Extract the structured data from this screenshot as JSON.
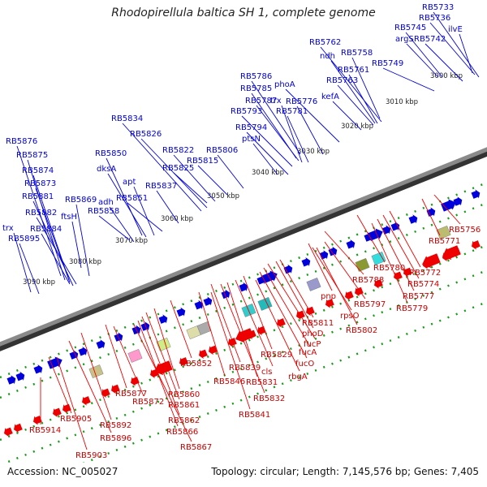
{
  "title": "Rhodopirellula baltica SH 1, complete genome",
  "footer": {
    "accession": "Accession: NC_005027",
    "summary": "Topology: circular; Length: 7,145,576 bp; Genes: 7,405"
  },
  "colors": {
    "forward_strand": "#0000dd",
    "reverse_strand": "#ee0000",
    "backbone": "#8a8a8a",
    "tick_marks": "#1a9a1a"
  },
  "scale": {
    "unit": "kbp",
    "ticks": [
      "3000 kbp",
      "3010 kbp",
      "3020 kbp",
      "3030 kbp",
      "3040 kbp",
      "3050 kbp",
      "3060 kbp",
      "3070 kbp",
      "3080 kbp",
      "3090 kbp"
    ]
  },
  "forward_labels": [
    "RB5733",
    "RB5736",
    "ilvE",
    "RB5745",
    "RB5742",
    "argS",
    "RB5749",
    "RB5762",
    "ndh",
    "RB5758",
    "RB5761",
    "RB5763",
    "kefA",
    "phoA",
    "RB5786",
    "RB5785",
    "RB5787",
    "trx",
    "RB5776",
    "RB5781",
    "RB5793",
    "RB5794",
    "ptsN",
    "RB5834",
    "RB5826",
    "RB5822",
    "RB5806",
    "RB5815",
    "RB5825",
    "RB5850",
    "dksA",
    "apt",
    "RB5837",
    "adh",
    "RB5851",
    "RB5858",
    "RB5876",
    "RB5875",
    "RB5874",
    "RB5873",
    "RB5881",
    "RB5869",
    "RB5882",
    "ftsH",
    "trx",
    "RB5884",
    "RB5895"
  ],
  "reverse_labels": [
    "RB5756",
    "RB5771",
    "RB5772",
    "RB5774",
    "RB5777",
    "RB5779",
    "RB5780",
    "RB5788",
    "pnp",
    "RB5797",
    "rpsO",
    "RB5802",
    "RB5811",
    "phoD",
    "fucP",
    "fucA",
    "fucO",
    "RB5829",
    "rbgA",
    "cls",
    "RB5831",
    "RB5832",
    "RB5839",
    "RB5841",
    "RB5846",
    "RB5852",
    "RB5860",
    "RB5861",
    "RB5862",
    "RB5866",
    "RB5867",
    "RB5877",
    "RB5872",
    "RB5892",
    "RB5896",
    "RB5903",
    "RB5905",
    "RB5914"
  ]
}
